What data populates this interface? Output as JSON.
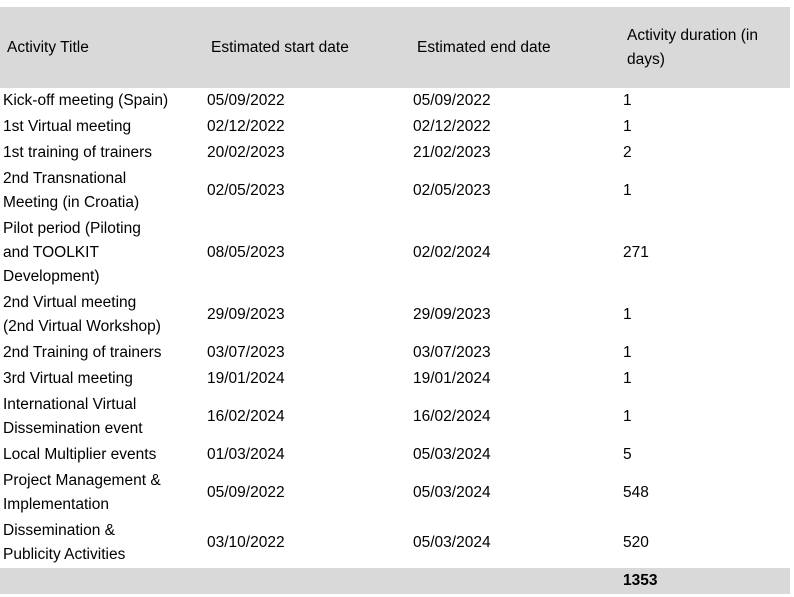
{
  "table": {
    "columns": [
      "Activity Title",
      "Estimated start date",
      "Estimated end date",
      "Activity duration (in\ndays)"
    ],
    "rows": [
      {
        "title": "Kick-off meeting (Spain)",
        "start": "05/09/2022",
        "end": "05/09/2022",
        "duration": "1"
      },
      {
        "title": "1st Virtual meeting",
        "start": "02/12/2022",
        "end": "02/12/2022",
        "duration": "1"
      },
      {
        "title": "1st training of trainers",
        "start": "20/02/2023",
        "end": "21/02/2023",
        "duration": "2"
      },
      {
        "title": "2nd Transnational\nMeeting (in Croatia)",
        "start": "02/05/2023",
        "end": "02/05/2023",
        "duration": "1"
      },
      {
        "title": "Pilot period (Piloting\nand TOOLKIT\nDevelopment)",
        "start": "08/05/2023",
        "end": "02/02/2024",
        "duration": "271"
      },
      {
        "title": "2nd Virtual meeting\n(2nd Virtual Workshop)",
        "start": "29/09/2023",
        "end": "29/09/2023",
        "duration": "1"
      },
      {
        "title": "2nd Training of trainers",
        "start": "03/07/2023",
        "end": "03/07/2023",
        "duration": "1"
      },
      {
        "title": "3rd Virtual meeting",
        "start": "19/01/2024",
        "end": "19/01/2024",
        "duration": "1"
      },
      {
        "title": "International Virtual\nDissemination event",
        "start": "16/02/2024",
        "end": "16/02/2024",
        "duration": "1"
      },
      {
        "title": "Local Multiplier events",
        "start": "01/03/2024",
        "end": "05/03/2024",
        "duration": "5"
      },
      {
        "title": "Project Management &\nImplementation",
        "start": "05/09/2022",
        "end": "05/03/2024",
        "duration": "548"
      },
      {
        "title": "Dissemination &\nPublicity Activities",
        "start": "03/10/2022",
        "end": "05/03/2024",
        "duration": "520"
      }
    ],
    "total_duration": "1353"
  },
  "colors": {
    "header_bg": "#d9d9d9",
    "total_bg": "#d9d9d9",
    "text": "#000000"
  }
}
